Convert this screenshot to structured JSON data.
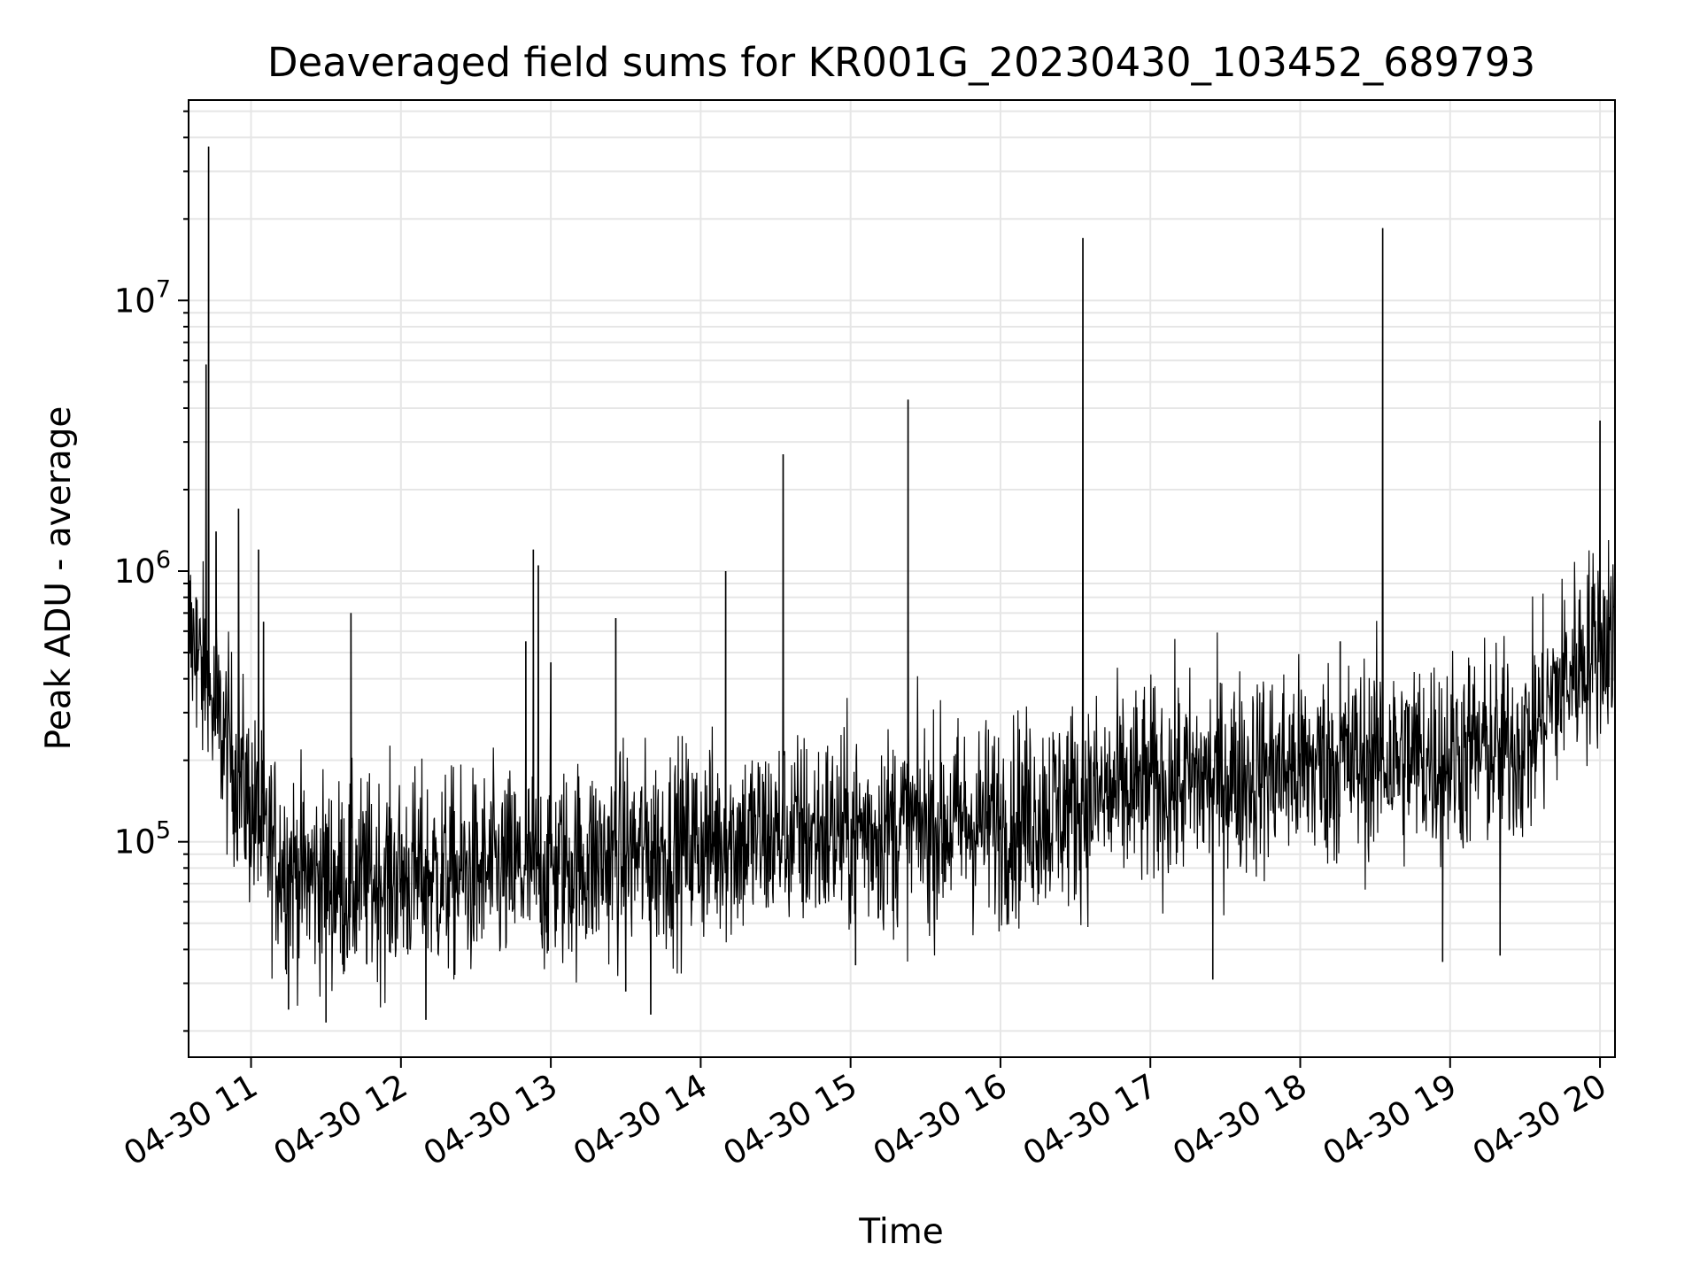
{
  "chart_data": {
    "type": "line",
    "title": "Deaveraged field sums for KR001G_20230430_103452_689793",
    "xlabel": "Time",
    "ylabel": "Peak ADU - average",
    "xscale": "time",
    "yscale": "log",
    "xlim": [
      "2023-04-30T10:35",
      "2023-04-30T20:06"
    ],
    "ylim": [
      16000,
      55000000
    ],
    "grid": true,
    "line_color": "#000000",
    "grid_color": "#e6e6e6",
    "x_ticks": [
      {
        "value": "2023-04-30T11:00",
        "label": "04-30 11"
      },
      {
        "value": "2023-04-30T12:00",
        "label": "04-30 12"
      },
      {
        "value": "2023-04-30T13:00",
        "label": "04-30 13"
      },
      {
        "value": "2023-04-30T14:00",
        "label": "04-30 14"
      },
      {
        "value": "2023-04-30T15:00",
        "label": "04-30 15"
      },
      {
        "value": "2023-04-30T16:00",
        "label": "04-30 16"
      },
      {
        "value": "2023-04-30T17:00",
        "label": "04-30 17"
      },
      {
        "value": "2023-04-30T18:00",
        "label": "04-30 18"
      },
      {
        "value": "2023-04-30T19:00",
        "label": "04-30 19"
      },
      {
        "value": "2023-04-30T20:00",
        "label": "04-30 20"
      }
    ],
    "y_ticks": [
      {
        "value": 100000,
        "base": "10",
        "exp": "5"
      },
      {
        "value": 1000000,
        "base": "10",
        "exp": "6"
      },
      {
        "value": 10000000,
        "base": "10",
        "exp": "7"
      }
    ],
    "baseline": [
      {
        "t": "2023-04-30T10:35",
        "y": 600000
      },
      {
        "t": "2023-04-30T10:45",
        "y": 300000
      },
      {
        "t": "2023-04-30T10:55",
        "y": 180000
      },
      {
        "t": "2023-04-30T11:05",
        "y": 100000
      },
      {
        "t": "2023-04-30T11:20",
        "y": 75000
      },
      {
        "t": "2023-04-30T11:40",
        "y": 70000
      },
      {
        "t": "2023-04-30T12:00",
        "y": 75000
      },
      {
        "t": "2023-04-30T12:30",
        "y": 75000
      },
      {
        "t": "2023-04-30T13:00",
        "y": 80000
      },
      {
        "t": "2023-04-30T14:00",
        "y": 100000
      },
      {
        "t": "2023-04-30T15:00",
        "y": 110000
      },
      {
        "t": "2023-04-30T16:00",
        "y": 120000
      },
      {
        "t": "2023-04-30T17:00",
        "y": 160000
      },
      {
        "t": "2023-04-30T18:00",
        "y": 190000
      },
      {
        "t": "2023-04-30T19:00",
        "y": 210000
      },
      {
        "t": "2023-04-30T19:30",
        "y": 230000
      },
      {
        "t": "2023-04-30T19:40",
        "y": 330000
      },
      {
        "t": "2023-04-30T19:50",
        "y": 450000
      },
      {
        "t": "2023-04-30T20:06",
        "y": 620000
      }
    ],
    "noise_spread_decades": 0.32,
    "spikes": [
      {
        "t": "2023-04-30T10:38",
        "y": 800000
      },
      {
        "t": "2023-04-30T10:42",
        "y": 5800000
      },
      {
        "t": "2023-04-30T10:43",
        "y": 37000000
      },
      {
        "t": "2023-04-30T10:46",
        "y": 1400000
      },
      {
        "t": "2023-04-30T10:55",
        "y": 1700000
      },
      {
        "t": "2023-04-30T11:03",
        "y": 1200000
      },
      {
        "t": "2023-04-30T11:05",
        "y": 650000
      },
      {
        "t": "2023-04-30T11:40",
        "y": 700000
      },
      {
        "t": "2023-04-30T12:50",
        "y": 550000
      },
      {
        "t": "2023-04-30T12:53",
        "y": 1200000
      },
      {
        "t": "2023-04-30T12:55",
        "y": 1050000
      },
      {
        "t": "2023-04-30T13:00",
        "y": 460000
      },
      {
        "t": "2023-04-30T13:26",
        "y": 670000
      },
      {
        "t": "2023-04-30T14:10",
        "y": 1000000
      },
      {
        "t": "2023-04-30T14:33",
        "y": 2700000
      },
      {
        "t": "2023-04-30T15:23",
        "y": 4300000
      },
      {
        "t": "2023-04-30T16:33",
        "y": 17000000
      },
      {
        "t": "2023-04-30T18:16",
        "y": 550000
      },
      {
        "t": "2023-04-30T18:33",
        "y": 18500000
      },
      {
        "t": "2023-04-30T20:00",
        "y": 3600000
      }
    ],
    "dips": [
      {
        "t": "2023-04-30T11:15",
        "y": 24000
      },
      {
        "t": "2023-04-30T11:30",
        "y": 21500
      },
      {
        "t": "2023-04-30T12:10",
        "y": 22000
      },
      {
        "t": "2023-04-30T13:30",
        "y": 28000
      },
      {
        "t": "2023-04-30T13:40",
        "y": 23000
      },
      {
        "t": "2023-04-30T15:02",
        "y": 35000
      },
      {
        "t": "2023-04-30T17:25",
        "y": 31000
      },
      {
        "t": "2023-04-30T18:57",
        "y": 36000
      },
      {
        "t": "2023-04-30T19:20",
        "y": 38000
      }
    ]
  }
}
